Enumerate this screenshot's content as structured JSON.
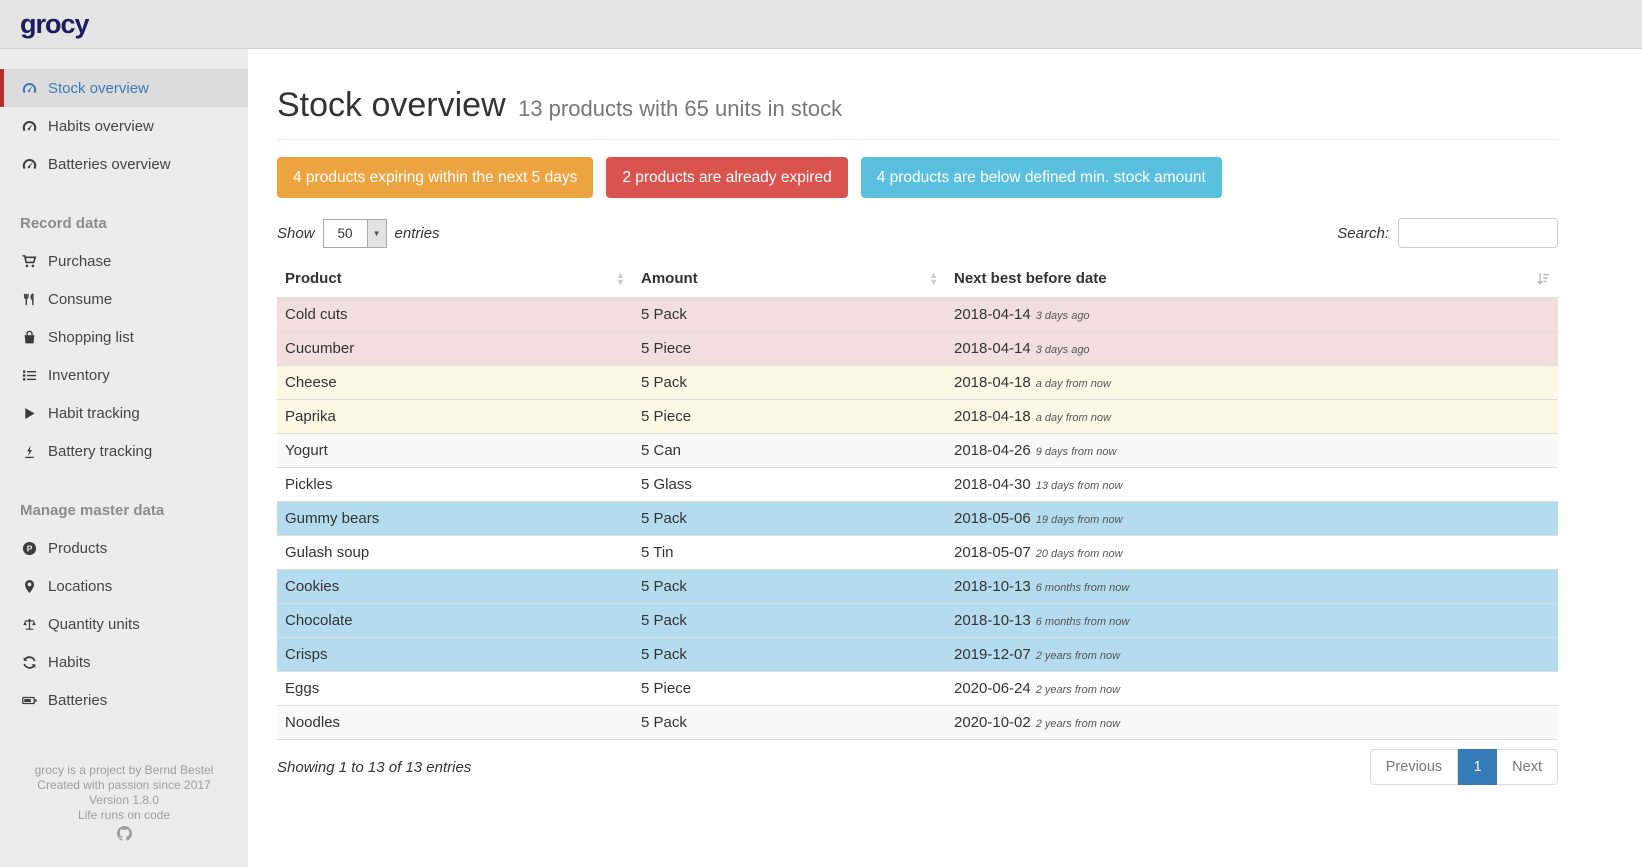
{
  "header": {
    "logo": "grocy"
  },
  "sidebar": {
    "sections": [
      {
        "header": null,
        "items": [
          {
            "label": "Stock overview",
            "icon": "gauge-icon",
            "active": true
          },
          {
            "label": "Habits overview",
            "icon": "gauge-icon",
            "active": false
          },
          {
            "label": "Batteries overview",
            "icon": "gauge-icon",
            "active": false
          }
        ]
      },
      {
        "header": "Record data",
        "items": [
          {
            "label": "Purchase",
            "icon": "cart-icon",
            "active": false
          },
          {
            "label": "Consume",
            "icon": "utensils-icon",
            "active": false
          },
          {
            "label": "Shopping list",
            "icon": "bag-icon",
            "active": false
          },
          {
            "label": "Inventory",
            "icon": "list-icon",
            "active": false
          },
          {
            "label": "Habit tracking",
            "icon": "play-icon",
            "active": false
          },
          {
            "label": "Battery tracking",
            "icon": "charging-icon",
            "active": false
          }
        ]
      },
      {
        "header": "Manage master data",
        "items": [
          {
            "label": "Products",
            "icon": "product-circle-icon",
            "active": false
          },
          {
            "label": "Locations",
            "icon": "marker-icon",
            "active": false
          },
          {
            "label": "Quantity units",
            "icon": "scale-icon",
            "active": false
          },
          {
            "label": "Habits",
            "icon": "sync-icon",
            "active": false
          },
          {
            "label": "Batteries",
            "icon": "battery-icon",
            "active": false
          }
        ]
      }
    ],
    "footer_lines": [
      "grocy is a project by Bernd Bestel",
      "Created with passion since 2017",
      "Version 1.8.0",
      "Life runs on code"
    ],
    "footer_icon": "github-icon"
  },
  "page": {
    "title": "Stock overview",
    "subtitle": "13 products with 65 units in stock",
    "alerts": [
      {
        "label": "4 products expiring within the next 5 days",
        "color": "#eca440"
      },
      {
        "label": "2 products are already expired",
        "color": "#d9534f"
      },
      {
        "label": "4 products are below defined min. stock amount",
        "color": "#5bc0de"
      }
    ],
    "table_controls": {
      "show_label": "Show",
      "page_length": "50",
      "entries_label": "entries",
      "search_label": "Search:",
      "search_value": ""
    },
    "table": {
      "columns": [
        "Product",
        "Amount",
        "Next best before date"
      ],
      "rows": [
        {
          "product": "Cold cuts",
          "amount": "5 Pack",
          "date": "2018-04-14",
          "relative": "3 days ago",
          "status": "danger"
        },
        {
          "product": "Cucumber",
          "amount": "5 Piece",
          "date": "2018-04-14",
          "relative": "3 days ago",
          "status": "danger"
        },
        {
          "product": "Cheese",
          "amount": "5 Pack",
          "date": "2018-04-18",
          "relative": "a day from now",
          "status": "warning"
        },
        {
          "product": "Paprika",
          "amount": "5 Piece",
          "date": "2018-04-18",
          "relative": "a day from now",
          "status": "warning"
        },
        {
          "product": "Yogurt",
          "amount": "5 Can",
          "date": "2018-04-26",
          "relative": "9 days from now",
          "status": null
        },
        {
          "product": "Pickles",
          "amount": "5 Glass",
          "date": "2018-04-30",
          "relative": "13 days from now",
          "status": null
        },
        {
          "product": "Gummy bears",
          "amount": "5 Pack",
          "date": "2018-05-06",
          "relative": "19 days from now",
          "status": "info"
        },
        {
          "product": "Gulash soup",
          "amount": "5 Tin",
          "date": "2018-05-07",
          "relative": "20 days from now",
          "status": null
        },
        {
          "product": "Cookies",
          "amount": "5 Pack",
          "date": "2018-10-13",
          "relative": "6 months from now",
          "status": "info"
        },
        {
          "product": "Chocolate",
          "amount": "5 Pack",
          "date": "2018-10-13",
          "relative": "6 months from now",
          "status": "info"
        },
        {
          "product": "Crisps",
          "amount": "5 Pack",
          "date": "2019-12-07",
          "relative": "2 years from now",
          "status": "info"
        },
        {
          "product": "Eggs",
          "amount": "5 Piece",
          "date": "2020-06-24",
          "relative": "2 years from now",
          "status": null
        },
        {
          "product": "Noodles",
          "amount": "5 Pack",
          "date": "2020-10-02",
          "relative": "2 years from now",
          "status": null
        }
      ]
    },
    "info": "Showing 1 to 13 of 13 entries",
    "pagination": {
      "previous": "Previous",
      "page": "1",
      "next": "Next"
    }
  },
  "colors": {
    "logo": "#1e1b5e",
    "accent": "#337ab7",
    "active_marker_red": "#b5302a",
    "row_danger": "#f2dede",
    "row_warning": "#fcf8e3",
    "row_info": "#b5dcee",
    "row_stripe": "#f9f9f9",
    "alert_warning": "#eca440",
    "alert_danger": "#d9534f",
    "alert_info": "#5bc0de"
  }
}
